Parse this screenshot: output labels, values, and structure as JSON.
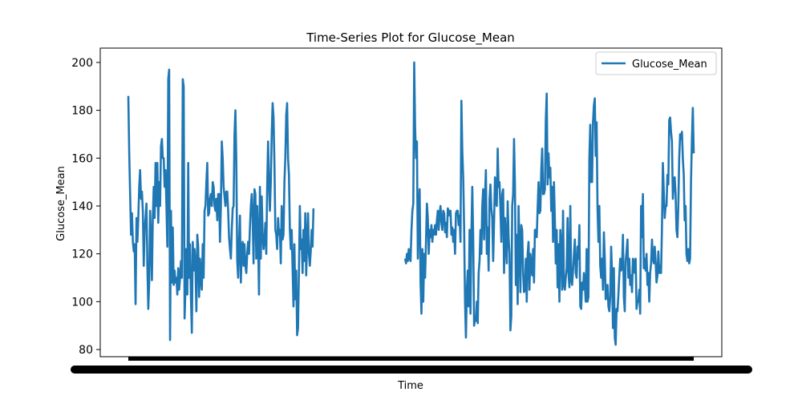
{
  "chart_data": {
    "type": "line",
    "title": "Time-Series Plot for Glucose_Mean",
    "xlabel": "Time",
    "ylabel": "Glucose_Mean",
    "ylim": [
      77,
      206
    ],
    "yticks": [
      80,
      100,
      120,
      140,
      160,
      180,
      200
    ],
    "grid": false,
    "legend_position": "top-right",
    "series_color": "#1f77b4",
    "series": [
      {
        "name": "Glucose_Mean",
        "segments": [
          [
            186,
            162,
            145,
            128,
            137,
            125,
            121,
            124,
            99,
            135,
            125,
            135,
            148,
            155,
            143,
            146,
            138,
            115,
            130,
            135,
            141,
            115,
            97,
            108,
            138,
            126,
            109,
            135,
            148,
            135,
            158,
            140,
            158,
            133,
            150,
            140,
            165,
            168,
            160,
            160,
            148,
            155,
            140,
            123,
            193,
            197,
            84,
            138,
            108,
            131,
            107,
            113,
            108,
            110,
            103,
            114,
            105,
            110,
            117,
            110,
            193,
            190,
            93,
            106,
            122,
            103,
            158,
            110,
            124,
            102,
            87,
            125,
            113,
            122,
            115,
            96,
            128,
            123,
            102,
            118,
            110,
            105,
            124,
            110,
            138,
            140,
            150,
            158,
            136,
            137,
            143,
            145,
            140,
            150,
            148,
            140,
            138,
            143,
            134,
            145,
            145,
            125,
            140,
            167,
            160,
            148,
            144,
            140,
            146,
            146,
            138,
            127,
            122,
            118,
            130,
            139,
            140,
            170,
            180,
            159,
            117,
            110,
            125,
            136,
            108,
            122,
            125,
            115,
            124,
            115,
            112,
            120,
            125,
            120,
            131,
            140,
            145,
            135,
            116,
            147,
            145,
            118,
            140,
            126,
            103,
            148,
            118,
            144,
            128,
            122,
            126,
            133,
            120,
            148,
            167,
            150,
            138,
            150,
            170,
            183,
            177,
            158,
            130,
            128,
            122,
            135,
            128,
            130,
            116,
            140,
            126,
            128,
            150,
            160,
            178,
            183,
            160,
            153,
            130,
            122,
            130,
            114,
            98,
            124,
            101,
            113,
            86,
            89,
            113,
            140,
            122,
            126,
            112,
            130,
            117,
            137,
            111,
            125,
            137,
            120,
            115,
            121,
            130,
            123,
            139
          ],
          [
            118,
            116,
            120,
            117,
            122,
            118,
            117,
            130,
            138,
            141,
            200,
            173,
            160,
            167,
            118,
            138,
            147,
            108,
            95,
            122,
            100,
            120,
            110,
            125,
            141,
            135,
            120,
            130,
            127,
            132,
            125,
            130,
            128,
            132,
            128,
            134,
            138,
            130,
            137,
            140,
            133,
            130,
            138,
            137,
            129,
            133,
            127,
            139,
            138,
            136,
            138,
            128,
            131,
            125,
            130,
            120,
            137,
            138,
            138,
            132,
            136,
            125,
            184,
            163,
            152,
            131,
            100,
            85,
            105,
            113,
            98,
            130,
            95,
            128,
            148,
            127,
            90,
            93,
            92,
            100,
            91,
            112,
            117,
            130,
            120,
            140,
            147,
            126,
            144,
            155,
            120,
            131,
            113,
            143,
            149,
            139,
            135,
            117,
            133,
            152,
            142,
            140,
            164,
            148,
            150,
            139,
            125,
            145,
            147,
            112,
            135,
            125,
            116,
            142,
            127,
            120,
            88,
            94,
            140,
            145,
            168,
            149,
            107,
            128,
            99,
            140,
            122,
            104,
            132,
            130,
            112,
            104,
            105,
            118,
            100,
            120,
            125,
            105,
            120,
            115,
            111,
            122,
            108,
            130,
            130,
            127,
            139,
            150,
            137,
            138,
            155,
            164,
            145,
            145,
            147,
            176,
            187,
            149,
            162,
            152,
            156,
            138,
            148,
            125,
            150,
            134,
            116,
            130,
            106,
            124,
            100,
            130,
            123,
            105,
            138,
            107,
            105,
            110,
            114,
            135,
            112,
            106,
            140,
            109,
            107,
            113,
            120,
            126,
            112,
            110,
            123,
            118,
            132,
            98,
            97,
            108,
            105,
            112,
            107,
            100,
            122,
            100,
            102,
            160,
            174,
            150,
            150,
            175,
            182,
            185,
            161,
            175,
            139,
            125,
            140,
            115,
            110,
            118,
            105,
            129,
            118,
            101,
            102,
            107,
            98,
            96,
            102,
            123,
            112,
            89,
            114,
            85,
            82,
            97,
            96,
            103,
            111,
            118,
            113,
            115,
            128,
            102,
            96,
            117,
            121,
            126,
            110,
            118,
            107,
            111,
            104,
            118,
            117,
            112,
            118,
            97,
            100,
            100,
            105,
            95,
            140,
            127,
            145,
            114,
            118,
            113,
            120,
            107,
            112,
            100,
            112,
            116,
            126,
            118,
            116,
            123,
            117,
            108,
            111,
            121,
            112,
            115,
            112,
            131,
            158,
            146,
            135,
            140,
            140,
            153,
            149,
            176,
            177,
            171,
            167,
            143,
            150,
            152,
            145,
            130,
            127,
            140,
            160,
            170,
            168,
            171,
            160,
            153,
            134,
            140,
            120,
            117,
            122,
            116,
            118,
            150,
            168,
            181,
            162
          ]
        ]
      }
    ]
  }
}
